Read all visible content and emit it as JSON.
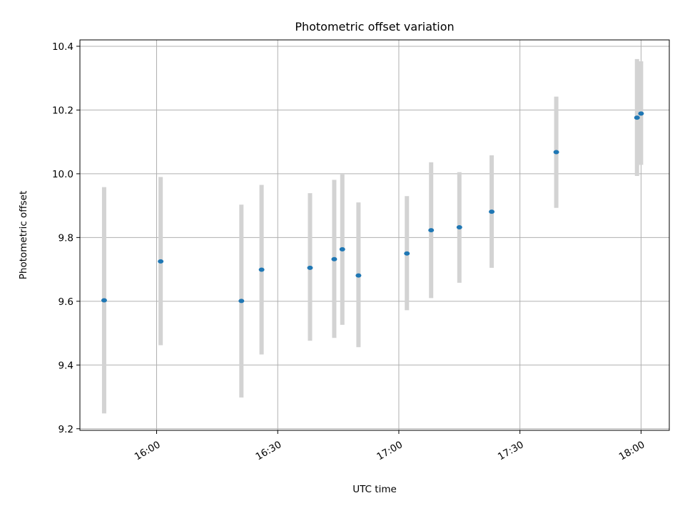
{
  "chart_data": {
    "type": "scatter",
    "title": "Photometric offset variation",
    "xlabel": "UTC time",
    "ylabel": "Photometric offset",
    "x_axis": {
      "kind": "time",
      "range": [
        "15:41",
        "18:07"
      ],
      "ticks": [
        "16:00",
        "16:30",
        "17:00",
        "17:30",
        "18:00"
      ]
    },
    "y_axis": {
      "range": [
        9.195,
        10.42
      ],
      "ticks": [
        "9.2",
        "9.4",
        "9.6",
        "9.8",
        "10.0",
        "10.2",
        "10.4"
      ]
    },
    "grid": true,
    "marker_color": "#1f77b4",
    "errorbar_color": "#d3d3d3",
    "series": [
      {
        "points": [
          {
            "x": "15:47",
            "y": 9.603,
            "ylow": 9.248,
            "yhigh": 9.958
          },
          {
            "x": "16:01",
            "y": 9.725,
            "ylow": 9.462,
            "yhigh": 9.99
          },
          {
            "x": "16:21",
            "y": 9.601,
            "ylow": 9.298,
            "yhigh": 9.903
          },
          {
            "x": "16:26",
            "y": 9.699,
            "ylow": 9.433,
            "yhigh": 9.965
          },
          {
            "x": "16:38",
            "y": 9.705,
            "ylow": 9.476,
            "yhigh": 9.939
          },
          {
            "x": "16:44",
            "y": 9.732,
            "ylow": 9.485,
            "yhigh": 9.981
          },
          {
            "x": "16:46",
            "y": 9.763,
            "ylow": 9.526,
            "yhigh": 9.998
          },
          {
            "x": "16:50",
            "y": 9.681,
            "ylow": 9.456,
            "yhigh": 9.91
          },
          {
            "x": "17:02",
            "y": 9.75,
            "ylow": 9.572,
            "yhigh": 9.93
          },
          {
            "x": "17:08",
            "y": 9.823,
            "ylow": 9.61,
            "yhigh": 10.036
          },
          {
            "x": "17:15",
            "y": 9.832,
            "ylow": 9.658,
            "yhigh": 10.005
          },
          {
            "x": "17:23",
            "y": 9.881,
            "ylow": 9.705,
            "yhigh": 10.058
          },
          {
            "x": "17:39",
            "y": 10.068,
            "ylow": 9.893,
            "yhigh": 10.242
          },
          {
            "x": "17:59",
            "y": 10.176,
            "ylow": 9.993,
            "yhigh": 10.36
          },
          {
            "x": "18:00",
            "y": 10.189,
            "ylow": 10.028,
            "yhigh": 10.353
          }
        ]
      }
    ]
  }
}
